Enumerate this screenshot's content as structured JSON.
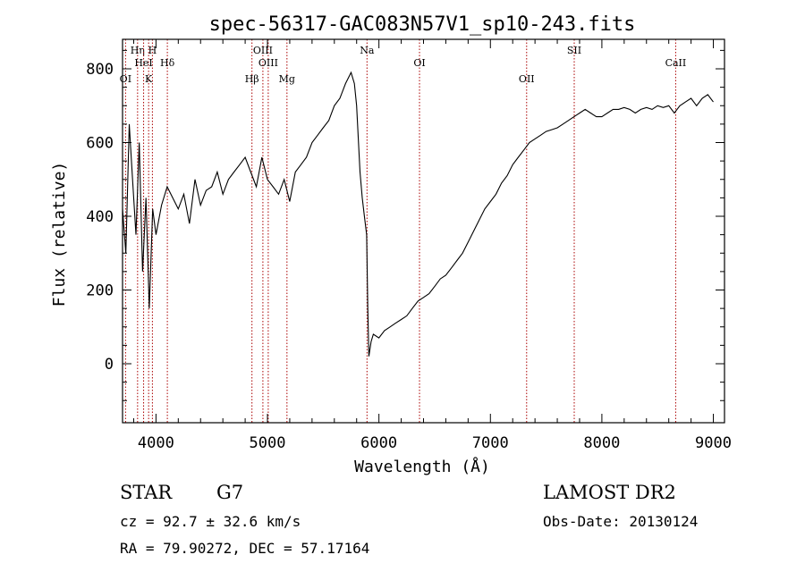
{
  "chart_data": {
    "type": "line",
    "title": "spec-56317-GAC083N57V1_sp10-243.fits",
    "xlabel": "Wavelength (Å)",
    "ylabel": "Flux (relative)",
    "xlim": [
      3700,
      9100
    ],
    "ylim": [
      -160,
      880
    ],
    "xticks": [
      4000,
      5000,
      6000,
      7000,
      8000,
      9000
    ],
    "yticks": [
      0,
      200,
      400,
      600,
      800
    ],
    "grid": false,
    "series": [
      {
        "x": [
          3700,
          3730,
          3760,
          3790,
          3820,
          3850,
          3880,
          3910,
          3940,
          3970,
          4000,
          4050,
          4100,
          4150,
          4200,
          4250,
          4300,
          4350,
          4400,
          4450,
          4500,
          4550,
          4600,
          4650,
          4700,
          4750,
          4800,
          4850,
          4900,
          4950,
          5000,
          5050,
          5100,
          5150,
          5200,
          5250,
          5300,
          5350,
          5400,
          5450,
          5500,
          5550,
          5600,
          5650,
          5700,
          5750,
          5780,
          5800,
          5830,
          5850,
          5870,
          5890,
          5900,
          5910,
          5930,
          5950,
          6000,
          6050,
          6100,
          6150,
          6200,
          6250,
          6300,
          6350,
          6400,
          6450,
          6500,
          6550,
          6600,
          6650,
          6700,
          6750,
          6800,
          6850,
          6900,
          6950,
          7000,
          7050,
          7100,
          7150,
          7200,
          7250,
          7300,
          7350,
          7400,
          7450,
          7500,
          7550,
          7600,
          7650,
          7700,
          7750,
          7800,
          7850,
          7900,
          7950,
          8000,
          8050,
          8100,
          8150,
          8200,
          8250,
          8300,
          8350,
          8400,
          8450,
          8500,
          8550,
          8600,
          8650,
          8700,
          8750,
          8800,
          8850,
          8900,
          8950,
          9000
        ],
        "y": [
          420,
          300,
          650,
          500,
          350,
          600,
          250,
          450,
          150,
          420,
          350,
          430,
          480,
          450,
          420,
          460,
          380,
          500,
          430,
          470,
          480,
          520,
          460,
          500,
          520,
          540,
          560,
          520,
          480,
          560,
          500,
          480,
          460,
          500,
          440,
          520,
          540,
          560,
          600,
          620,
          640,
          660,
          700,
          720,
          760,
          790,
          760,
          700,
          520,
          450,
          400,
          350,
          150,
          20,
          60,
          80,
          70,
          90,
          100,
          110,
          120,
          130,
          150,
          170,
          180,
          190,
          210,
          230,
          240,
          260,
          280,
          300,
          330,
          360,
          390,
          420,
          440,
          460,
          490,
          510,
          540,
          560,
          580,
          600,
          610,
          620,
          630,
          635,
          640,
          650,
          660,
          670,
          680,
          690,
          680,
          670,
          670,
          680,
          690,
          690,
          695,
          690,
          680,
          690,
          695,
          690,
          700,
          695,
          700,
          680,
          700,
          710,
          720,
          700,
          720,
          730,
          710
        ]
      }
    ],
    "line_markers": [
      {
        "label": "OI",
        "x": 3727
      },
      {
        "label": "Hη",
        "x": 3835
      },
      {
        "label": "HeI",
        "x": 3889
      },
      {
        "label": "K",
        "x": 3934
      },
      {
        "label": "H",
        "x": 3968
      },
      {
        "label": "Hδ",
        "x": 4102
      },
      {
        "label": "Hβ",
        "x": 4861
      },
      {
        "label": "OIII",
        "x": 4959
      },
      {
        "label": "OIII",
        "x": 5007
      },
      {
        "label": "Mg",
        "x": 5175
      },
      {
        "label": "Na",
        "x": 5893
      },
      {
        "label": "OI",
        "x": 6364
      },
      {
        "label": "OII",
        "x": 7325
      },
      {
        "label": "SII",
        "x": 7752
      },
      {
        "label": "CaII",
        "x": 8662
      }
    ]
  },
  "info": {
    "class_label": "STAR",
    "subclass_label": "G7",
    "redshift_text": "cz =  92.7 ± 32.6 km/s",
    "coords_text": "RA =  79.90272, DEC =  57.17164",
    "survey_label": "LAMOST DR2",
    "obs_date_text": "Obs-Date: 20130124"
  },
  "colors": {
    "axis": "#000000",
    "spectrum": "#000000",
    "marker_line": "#aa0000",
    "background": "#ffffff"
  }
}
